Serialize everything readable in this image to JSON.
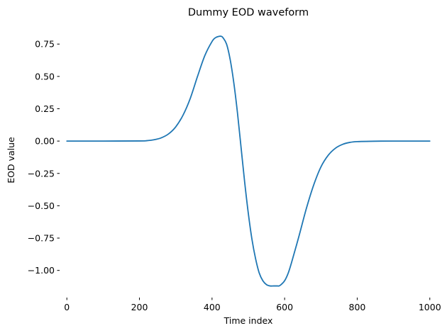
{
  "chart_data": {
    "type": "line",
    "title": "Dummy EOD waveform",
    "xlabel": "Time index",
    "ylabel": "EOD value",
    "xlim": [
      -20,
      1020
    ],
    "ylim": [
      -1.21,
      0.91
    ],
    "xticks": [
      0,
      200,
      400,
      600,
      800,
      1000
    ],
    "xtick_labels": [
      "0",
      "200",
      "400",
      "600",
      "800",
      "1000"
    ],
    "yticks": [
      0.75,
      0.5,
      0.25,
      0.0,
      -0.25,
      -0.5,
      -0.75,
      -1.0
    ],
    "ytick_labels": [
      "0.75",
      "0.50",
      "0.25",
      "0.00",
      "−0.25",
      "−0.50",
      "−0.75",
      "−1.00"
    ],
    "grid": false,
    "frame": false,
    "color": "#1f77b4",
    "series": [
      {
        "x": [
          0,
          100,
          200,
          220,
          240,
          260,
          280,
          300,
          320,
          340,
          360,
          380,
          400,
          410,
          420,
          425,
          430,
          440,
          450,
          460,
          470,
          480,
          490,
          500,
          510,
          520,
          530,
          540,
          550,
          560,
          570,
          580,
          585,
          590,
          600,
          610,
          620,
          640,
          660,
          680,
          700,
          720,
          740,
          760,
          780,
          800,
          850,
          900,
          1000
        ],
        "y": [
          0.0,
          0.0,
          0.001,
          0.003,
          0.01,
          0.025,
          0.055,
          0.11,
          0.2,
          0.33,
          0.5,
          0.66,
          0.77,
          0.8,
          0.81,
          0.81,
          0.8,
          0.75,
          0.63,
          0.45,
          0.22,
          -0.05,
          -0.32,
          -0.56,
          -0.76,
          -0.91,
          -1.02,
          -1.08,
          -1.11,
          -1.12,
          -1.12,
          -1.12,
          -1.12,
          -1.11,
          -1.08,
          -1.02,
          -0.93,
          -0.73,
          -0.52,
          -0.34,
          -0.2,
          -0.11,
          -0.055,
          -0.025,
          -0.01,
          -0.004,
          -0.001,
          0.0,
          0.0
        ]
      }
    ]
  }
}
